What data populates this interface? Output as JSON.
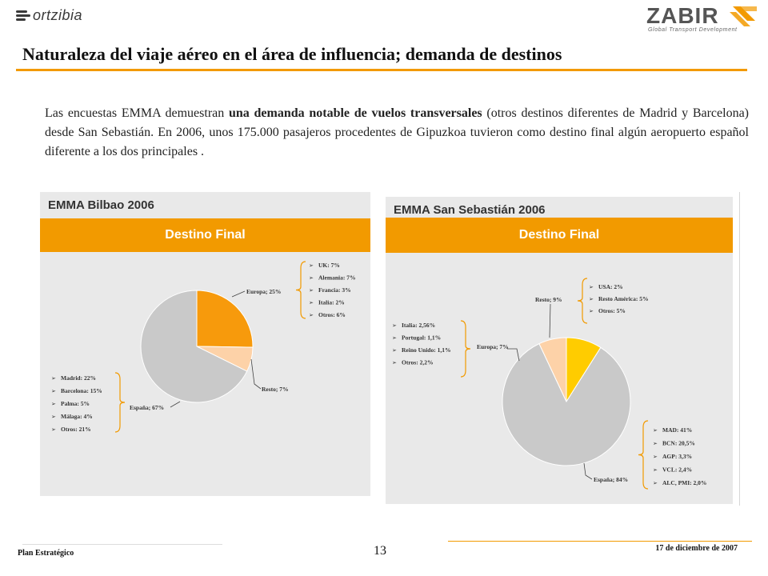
{
  "header": {
    "left_logo": "ortzibia",
    "right_logo": "ZABIR",
    "right_logo_tagline": "Global Transport Development",
    "title": "Naturaleza del viaje aéreo en el área de influencia; demanda de destinos"
  },
  "intro": {
    "part1": "Las encuestas EMMA demuestran ",
    "bold": "una demanda notable de vuelos transversales",
    "part2": " (otros destinos diferentes de Madrid y Barcelona) desde San Sebastián. En 2006, unos 175.000 pasajeros procedentes de Gipuzkoa tuvieron como destino final algún aeropuerto español diferente a los dos principales ."
  },
  "colors": {
    "accent": "#f29a00",
    "espana": "#c9c9c9",
    "europa_bilbao": "#f79a0c",
    "resto": "#fdd2a8",
    "resto_ss": "#ffcc00"
  },
  "chart_data": [
    {
      "type": "pie",
      "title": "EMMA Bilbao 2006",
      "subtitle": "Destino Final",
      "slices": [
        {
          "label": "Europa; 25%",
          "value": 25,
          "details": [
            "UK: 7%",
            "Alemania: 7%",
            "Francia: 3%",
            "Italia: 2%",
            "Otros: 6%"
          ]
        },
        {
          "label": "Resto; 7%",
          "value": 7,
          "details": []
        },
        {
          "label": "España; 67%",
          "value": 67,
          "details": [
            "Madrid: 22%",
            "Barcelona: 15%",
            "Palma: 5%",
            "Málaga: 4%",
            "Otros: 21%"
          ]
        }
      ]
    },
    {
      "type": "pie",
      "title": "EMMA San Sebastián 2006",
      "subtitle": "Destino Final",
      "slices": [
        {
          "label": "Resto; 9%",
          "value": 9,
          "details": [
            "USA: 2%",
            "Resto América: 5%",
            "Otros: 5%"
          ]
        },
        {
          "label": "España; 84%",
          "value": 84,
          "details": [
            "MAD: 41%",
            "BCN: 20,5%",
            "AGP: 3,3%",
            "VCL: 2,4%",
            "ALC, PMI: 2,0%"
          ]
        },
        {
          "label": "Europa; 7%",
          "value": 7,
          "details": [
            "Italia: 2,56%",
            "Portugal: 1,1%",
            "Reino Unido: 1,1%",
            "Otros: 2,2%"
          ]
        }
      ]
    }
  ],
  "footer": {
    "left": "Plan Estratégico",
    "page": "13",
    "date": "17 de diciembre de 2007"
  }
}
